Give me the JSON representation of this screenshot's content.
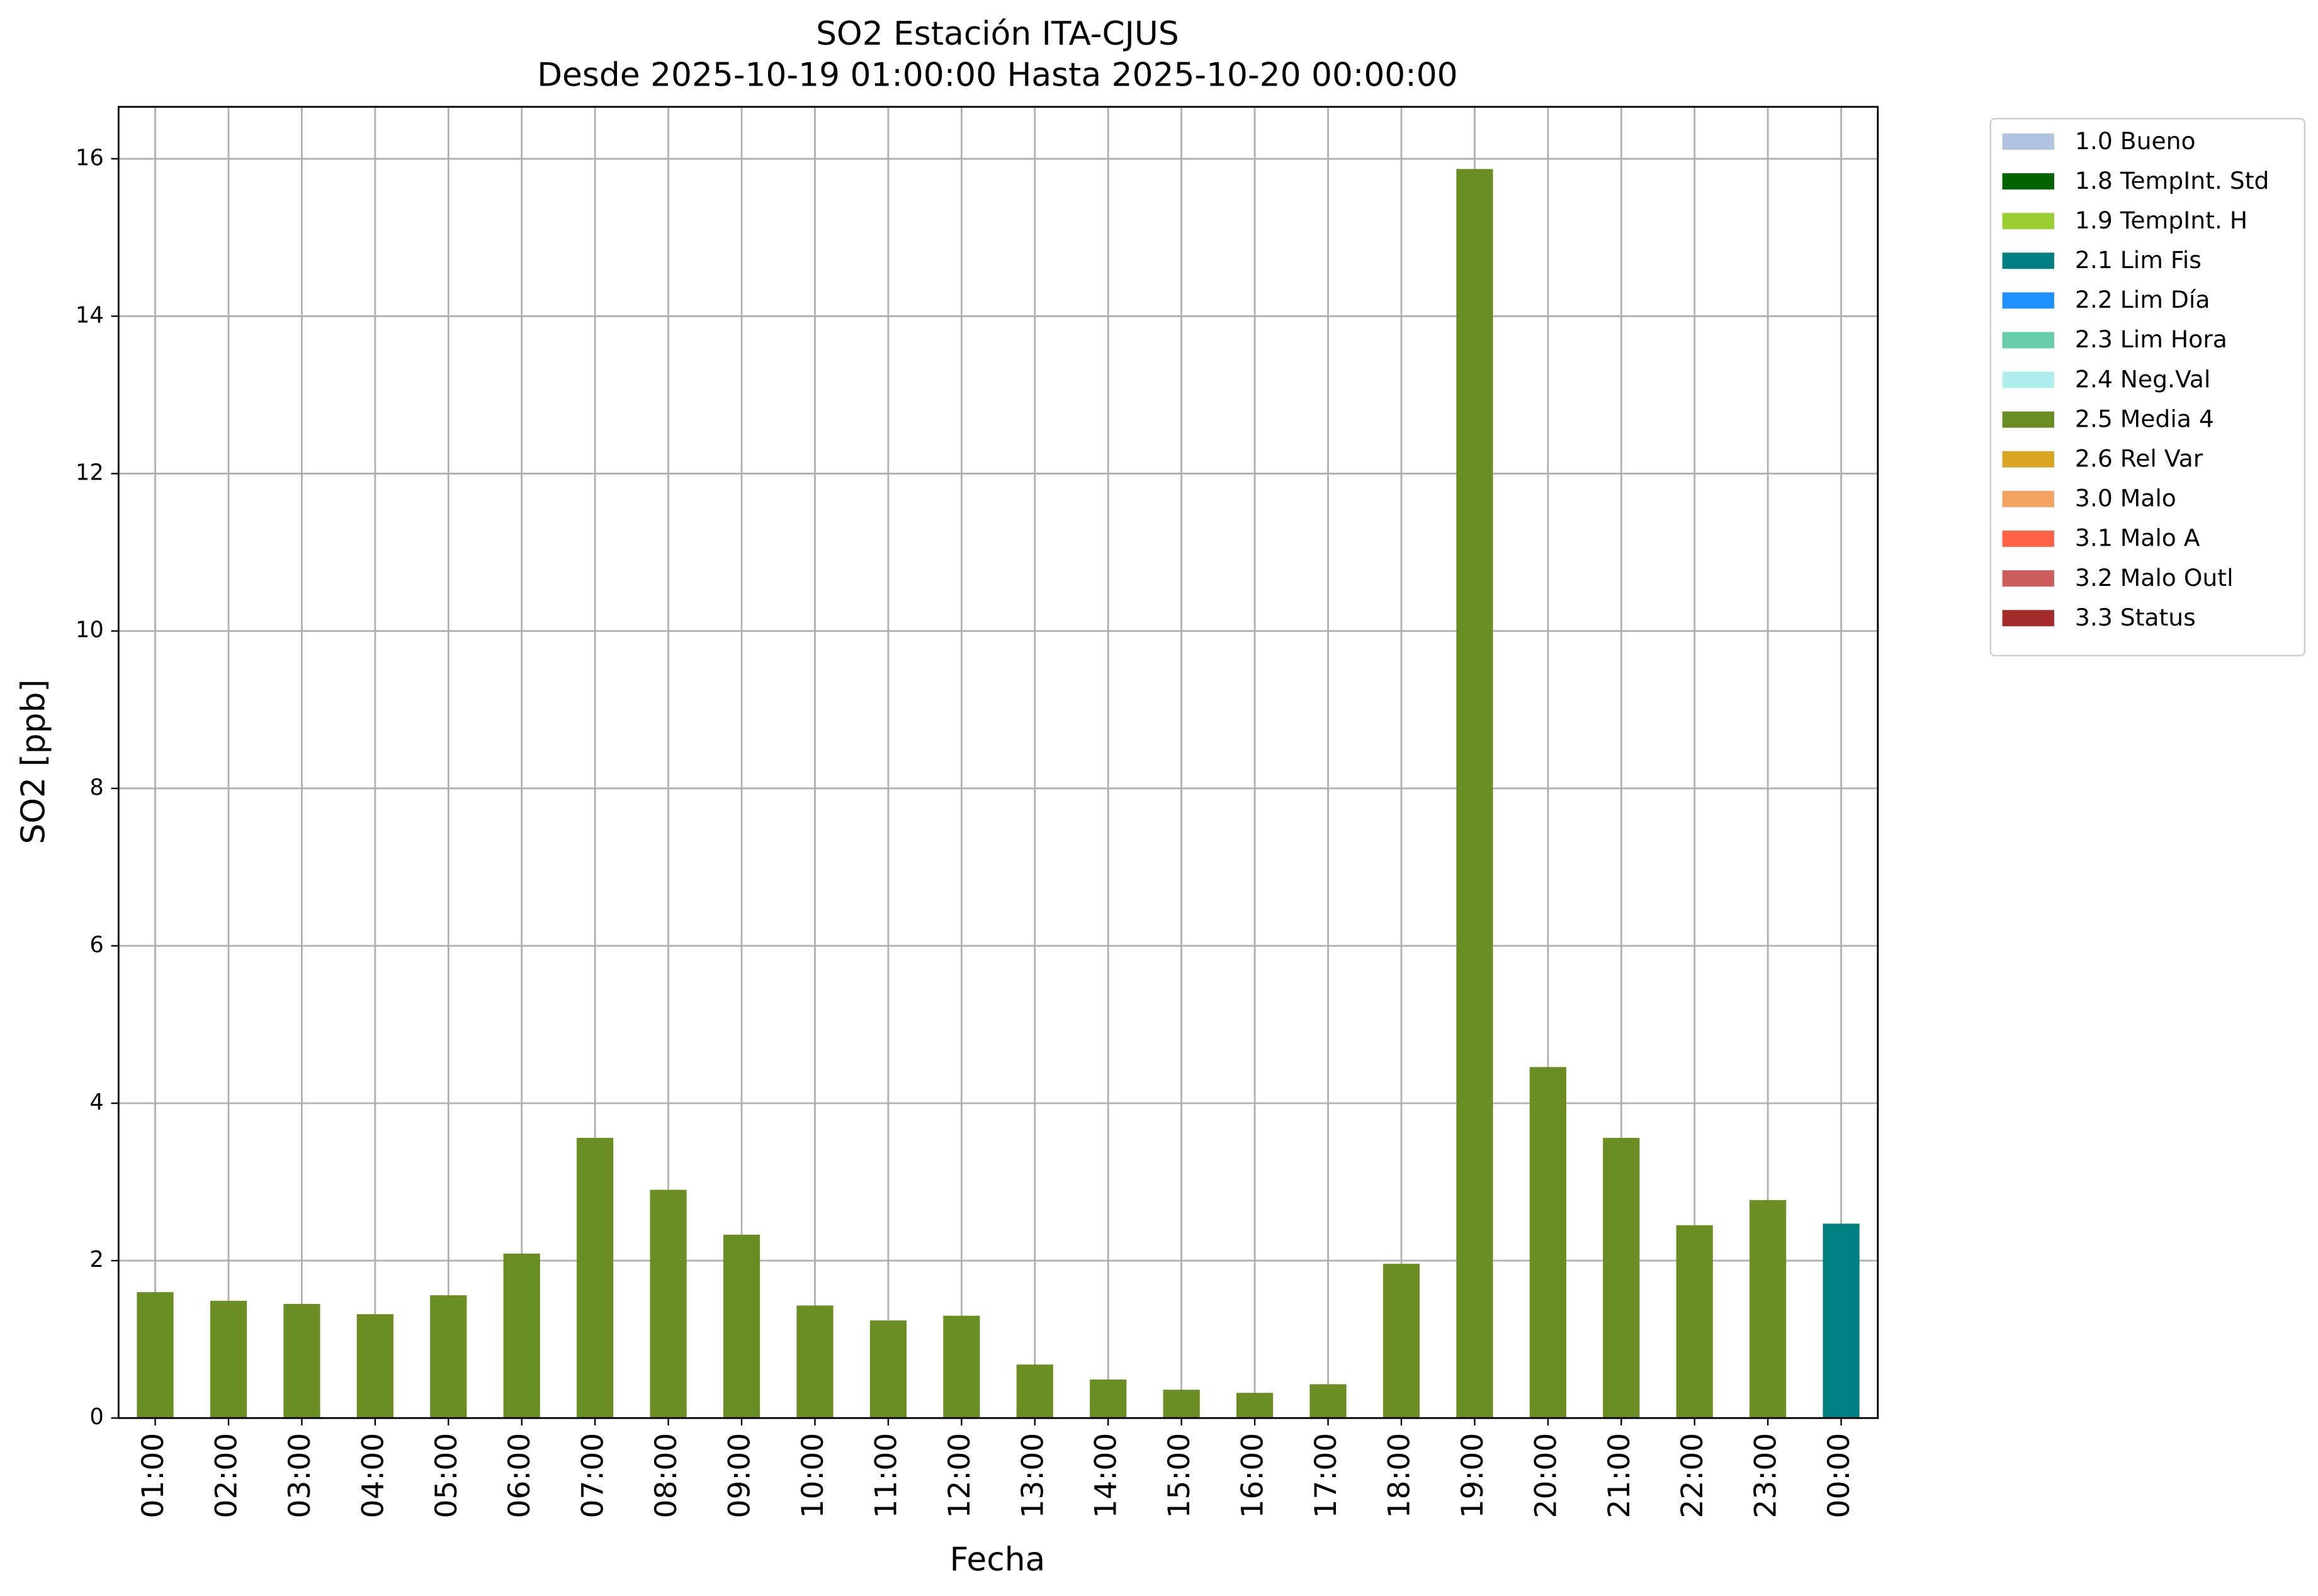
{
  "chart_data": {
    "type": "stacked_bar",
    "title": "SO2 Estación ITA-CJUS",
    "subtitle": "Desde 2025-10-19 01:00:00 Hasta 2025-10-20 00:00:00",
    "x_label": "Fecha",
    "y_label": "SO2 [ppb]",
    "categories": [
      "01:00",
      "02:00",
      "03:00",
      "04:00",
      "05:00",
      "06:00",
      "07:00",
      "08:00",
      "09:00",
      "10:00",
      "11:00",
      "12:00",
      "13:00",
      "14:00",
      "15:00",
      "16:00",
      "17:00",
      "18:00",
      "19:00",
      "20:00",
      "21:00",
      "22:00",
      "23:00",
      "00:00"
    ],
    "series": [
      {
        "name": "1.0 Bueno",
        "color": "#b0c4de",
        "values": [
          null,
          null,
          null,
          null,
          null,
          null,
          null,
          null,
          null,
          null,
          null,
          null,
          null,
          null,
          null,
          null,
          null,
          null,
          null,
          null,
          null,
          null,
          null,
          null
        ]
      },
      {
        "name": "1.8 TempInt. Std",
        "color": "#006400",
        "values": [
          null,
          null,
          null,
          null,
          null,
          null,
          null,
          null,
          null,
          null,
          null,
          null,
          null,
          null,
          null,
          null,
          null,
          null,
          null,
          null,
          null,
          null,
          null,
          null
        ]
      },
      {
        "name": "1.9 TempInt. H",
        "color": "#9acd32",
        "values": [
          null,
          null,
          null,
          null,
          null,
          null,
          null,
          null,
          null,
          null,
          null,
          null,
          null,
          null,
          null,
          null,
          null,
          null,
          null,
          null,
          null,
          null,
          null,
          null
        ]
      },
      {
        "name": "2.1 Lim Fis",
        "color": "#008080",
        "values": [
          null,
          null,
          null,
          null,
          null,
          null,
          null,
          null,
          null,
          null,
          null,
          null,
          null,
          null,
          null,
          null,
          null,
          null,
          null,
          null,
          null,
          null,
          null,
          2.47
        ]
      },
      {
        "name": "2.2 Lim Día",
        "color": "#1e90ff",
        "values": [
          null,
          null,
          null,
          null,
          null,
          null,
          null,
          null,
          null,
          null,
          null,
          null,
          null,
          null,
          null,
          null,
          null,
          null,
          null,
          null,
          null,
          null,
          null,
          null
        ]
      },
      {
        "name": "2.3 Lim Hora",
        "color": "#66cdaa",
        "values": [
          null,
          null,
          null,
          null,
          null,
          null,
          null,
          null,
          null,
          null,
          null,
          null,
          null,
          null,
          null,
          null,
          null,
          null,
          null,
          null,
          null,
          null,
          null,
          null
        ]
      },
      {
        "name": "2.4 Neg.Val",
        "color": "#afeeee",
        "values": [
          null,
          null,
          null,
          null,
          null,
          null,
          null,
          null,
          null,
          null,
          null,
          null,
          null,
          null,
          null,
          null,
          null,
          null,
          null,
          null,
          null,
          null,
          null,
          null
        ]
      },
      {
        "name": "2.5 Media 4",
        "color": "#6b8e23",
        "values": [
          1.6,
          1.49,
          1.45,
          1.32,
          1.56,
          2.09,
          3.56,
          2.9,
          2.33,
          1.43,
          1.24,
          1.3,
          0.68,
          0.49,
          0.36,
          0.32,
          0.43,
          1.96,
          15.87,
          4.46,
          3.56,
          2.45,
          2.77,
          null
        ]
      },
      {
        "name": "2.6 Rel Var",
        "color": "#daa520",
        "values": [
          null,
          null,
          null,
          null,
          null,
          null,
          null,
          null,
          null,
          null,
          null,
          null,
          null,
          null,
          null,
          null,
          null,
          null,
          null,
          null,
          null,
          null,
          null,
          null
        ]
      },
      {
        "name": "3.0 Malo",
        "color": "#f4a460",
        "values": [
          null,
          null,
          null,
          null,
          null,
          null,
          null,
          null,
          null,
          null,
          null,
          null,
          null,
          null,
          null,
          null,
          null,
          null,
          null,
          null,
          null,
          null,
          null,
          null
        ]
      },
      {
        "name": "3.1 Malo A",
        "color": "#ff6347",
        "values": [
          null,
          null,
          null,
          null,
          null,
          null,
          null,
          null,
          null,
          null,
          null,
          null,
          null,
          null,
          null,
          null,
          null,
          null,
          null,
          null,
          null,
          null,
          null,
          null
        ]
      },
      {
        "name": "3.2 Malo Outl",
        "color": "#cd5c5c",
        "values": [
          null,
          null,
          null,
          null,
          null,
          null,
          null,
          null,
          null,
          null,
          null,
          null,
          null,
          null,
          null,
          null,
          null,
          null,
          null,
          null,
          null,
          null,
          null,
          null
        ]
      },
      {
        "name": "3.3 Status",
        "color": "#a52a2a",
        "values": [
          null,
          null,
          null,
          null,
          null,
          null,
          null,
          null,
          null,
          null,
          null,
          null,
          null,
          null,
          null,
          null,
          null,
          null,
          null,
          null,
          null,
          null,
          null,
          null
        ]
      }
    ],
    "ylim": [
      0,
      16.66
    ],
    "yticks": [
      0,
      2,
      4,
      6,
      8,
      10,
      12,
      14,
      16
    ],
    "grid": true,
    "legend": "outside right"
  }
}
